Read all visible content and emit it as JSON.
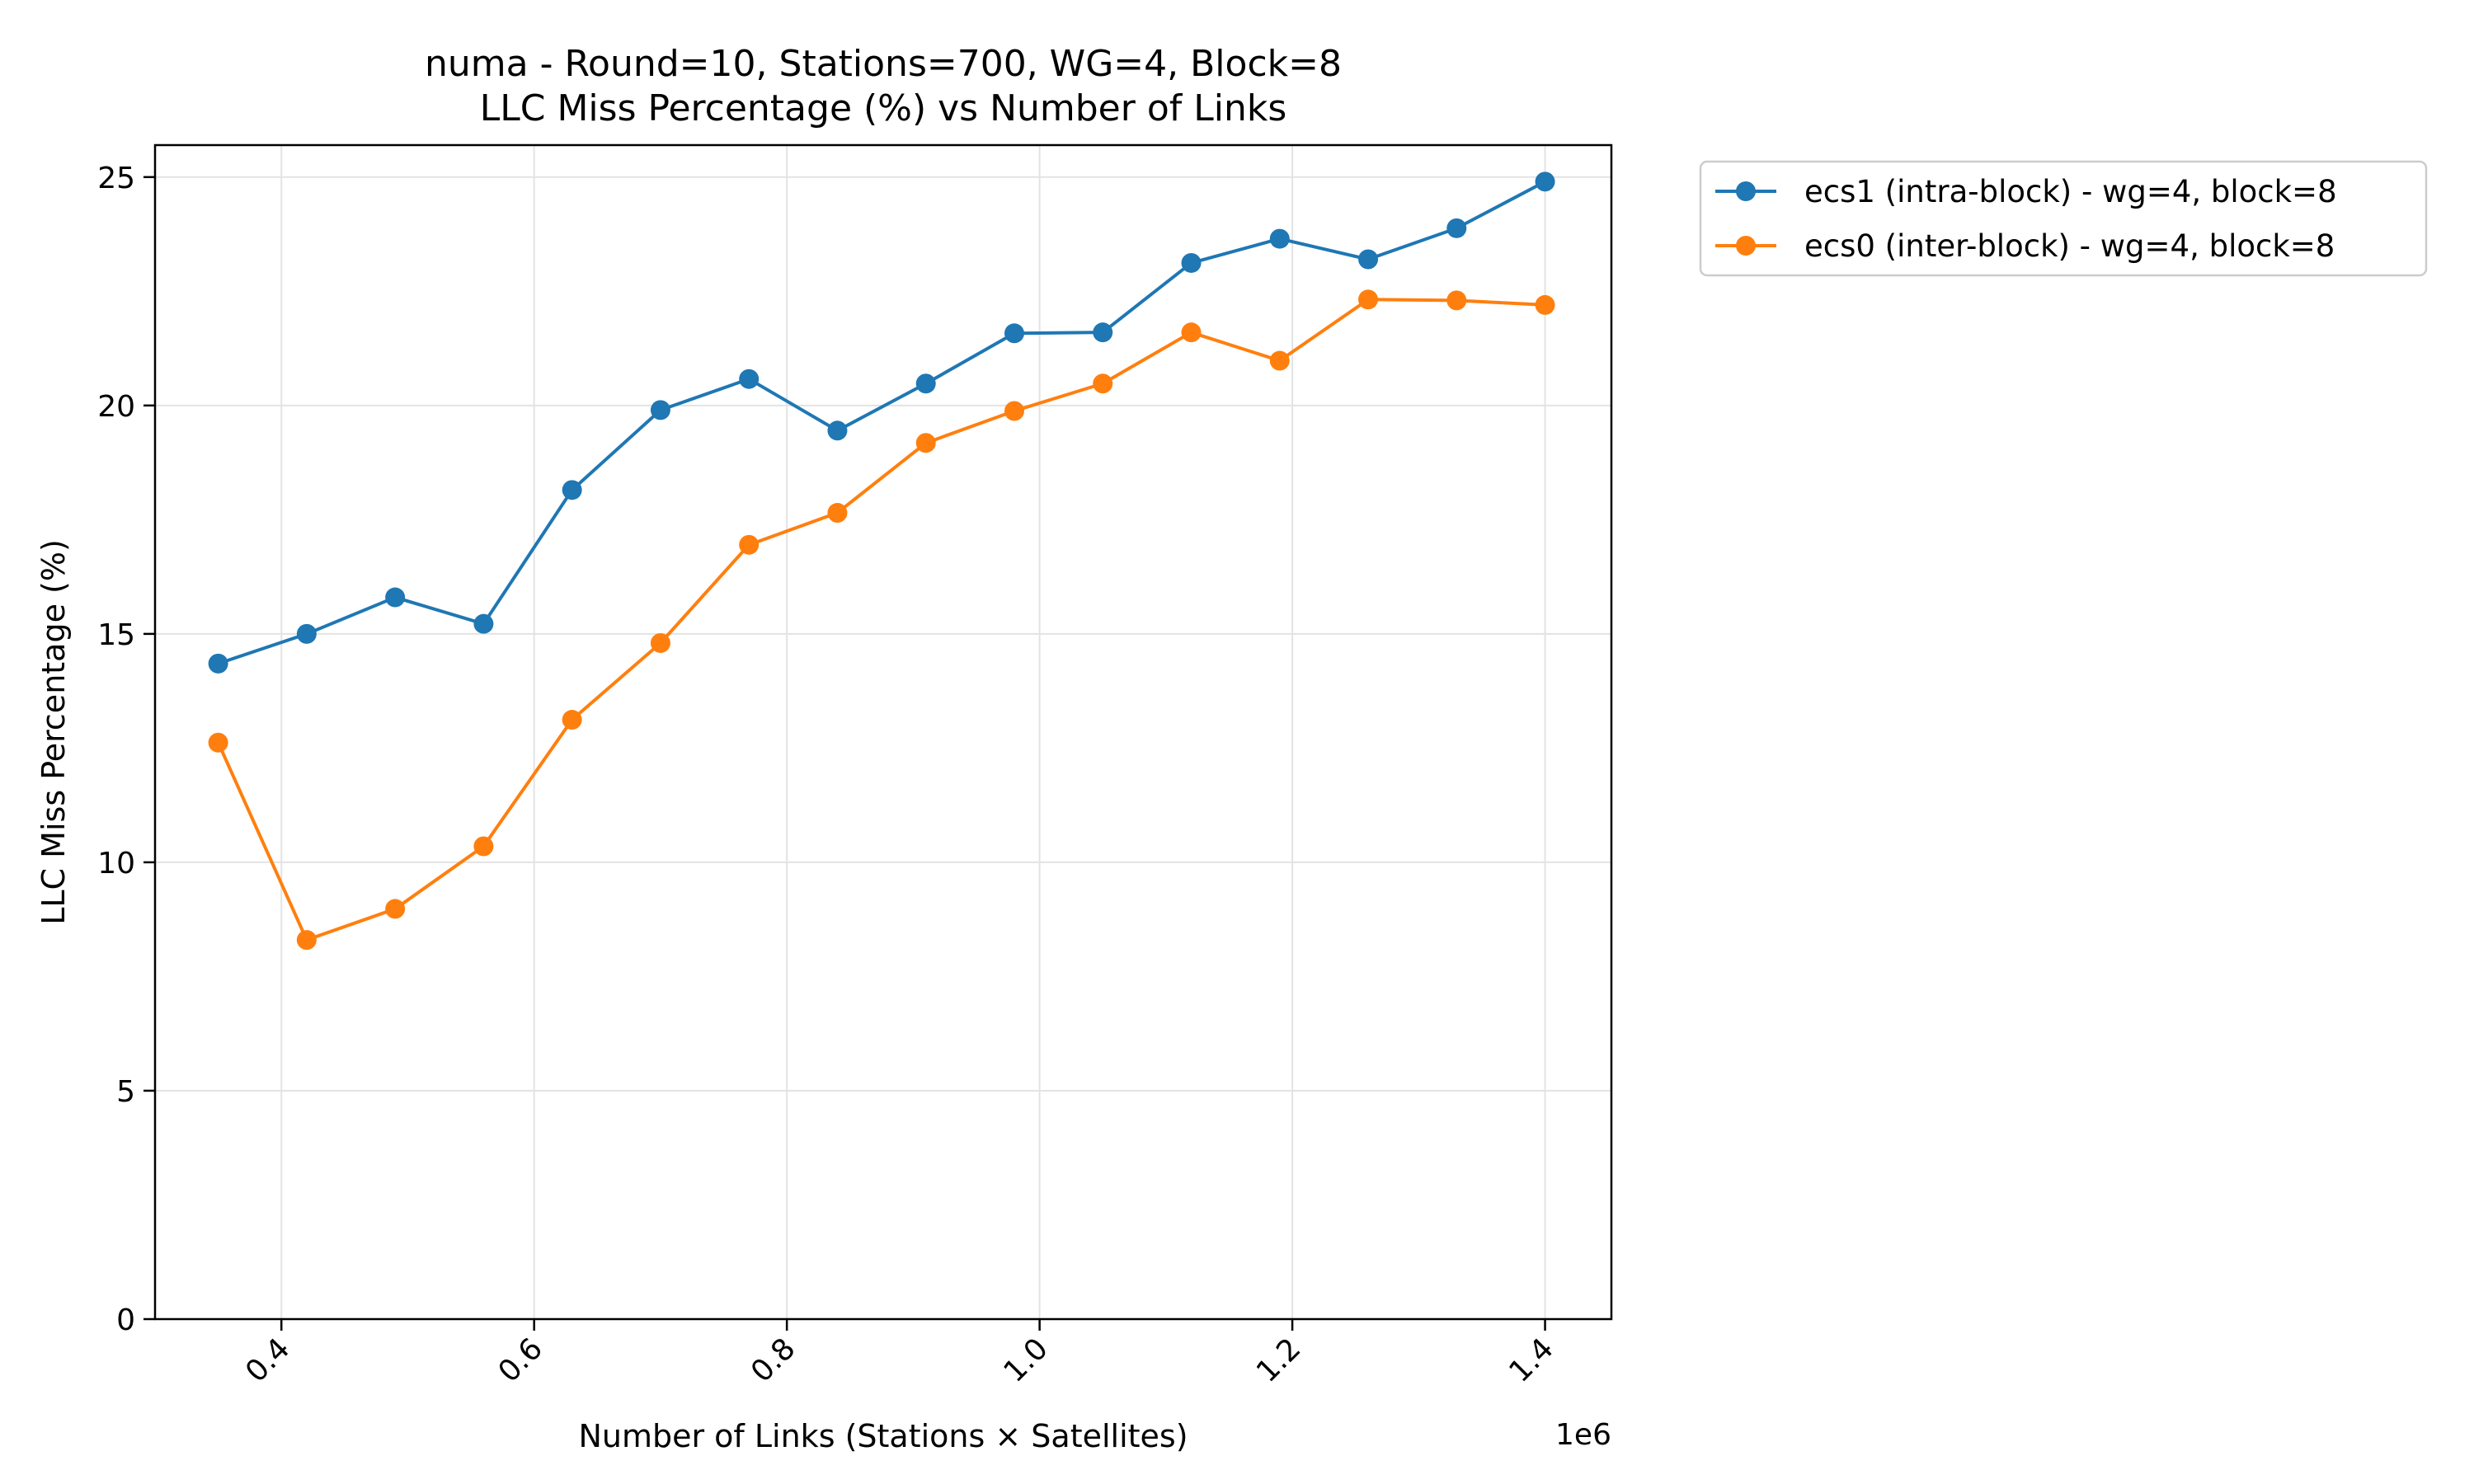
{
  "chart_data": {
    "type": "line",
    "title": "numa - Round=10, Stations=700, WG=4, Block=8",
    "subtitle": "LLC Miss Percentage (%) vs Number of Links",
    "xlabel": "Number of Links (Stations × Satellites)",
    "ylabel": "LLC Miss Percentage (%)",
    "x_offset_label": "1e6",
    "x_scale": 1000000,
    "xlim": [
      300000,
      1452500
    ],
    "ylim": [
      0,
      25.7
    ],
    "x_ticks": [
      400000,
      600000,
      800000,
      1000000,
      1200000,
      1400000
    ],
    "x_tick_labels": [
      "0.4",
      "0.6",
      "0.8",
      "1.0",
      "1.2",
      "1.4"
    ],
    "y_ticks": [
      0,
      5,
      10,
      15,
      20,
      25
    ],
    "y_tick_labels": [
      "0",
      "5",
      "10",
      "15",
      "20",
      "25"
    ],
    "grid": true,
    "legend_position": "outside-right",
    "x": [
      350000,
      420000,
      490000,
      560000,
      630000,
      700000,
      770000,
      840000,
      910000,
      980000,
      1050000,
      1120000,
      1190000,
      1260000,
      1330000,
      1400000
    ],
    "series": [
      {
        "name": "ecs1 (intra-block) - wg=4, block=8",
        "color": "#1f77b4",
        "values": [
          14.35,
          15.0,
          15.8,
          15.22,
          18.15,
          19.9,
          20.58,
          19.45,
          20.48,
          21.58,
          21.6,
          23.12,
          23.65,
          23.2,
          23.88,
          24.9
        ]
      },
      {
        "name": "ecs0 (inter-block) - wg=4, block=8",
        "color": "#ff7f0e",
        "values": [
          12.62,
          8.3,
          8.98,
          10.35,
          13.12,
          14.8,
          16.95,
          17.65,
          19.18,
          19.88,
          20.48,
          21.6,
          20.98,
          22.32,
          22.3,
          22.2
        ]
      }
    ]
  }
}
